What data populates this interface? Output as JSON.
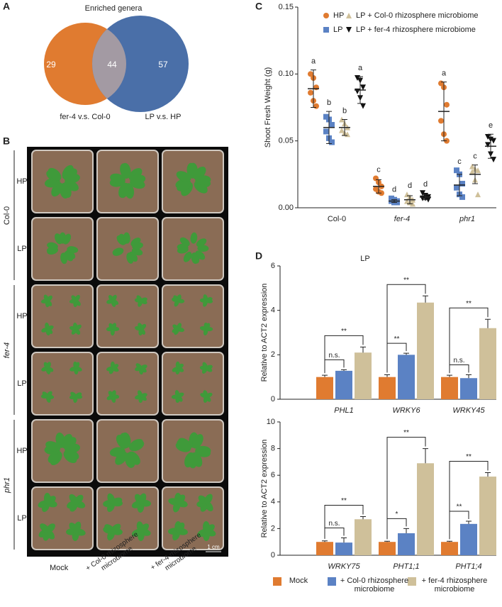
{
  "panel_labels": [
    "A",
    "B",
    "C",
    "D"
  ],
  "venn": {
    "title": "Enriched genera",
    "sets": [
      {
        "label": "fer-4 v.s. Col-0",
        "only": 29,
        "color": "#e07b30"
      },
      {
        "label": "LP v.s. HP",
        "only": 57,
        "color": "#4a6fa8"
      }
    ],
    "both": 44
  },
  "photos": {
    "genotypes": [
      "Col-0",
      "fer-4",
      "phr1"
    ],
    "conditions": [
      "HP",
      "LP"
    ],
    "treatments": [
      "Mock",
      "+ Col-0 rhizosphere microbiome",
      "+ fer-4 rhizosphere microbiome"
    ],
    "scale": "1 cm"
  },
  "chart_data": [
    {
      "type": "dot",
      "ylabel": "Shoot Fresh Weight (g)",
      "categories": [
        "Col-0",
        "fer-4",
        "phr1"
      ],
      "ylim": [
        0,
        0.15
      ],
      "yticks": [
        {
          "value": 0,
          "label": "0.00"
        },
        0.05,
        {
          "value": 0.1,
          "label": "0.10"
        },
        0.15
      ],
      "series": [
        {
          "name": "HP",
          "color": "#e07b30",
          "marker": "circle",
          "values": [
            0.089,
            0.016,
            0.072
          ],
          "errors": [
            0.014,
            0.005,
            0.022
          ],
          "letters": [
            "a",
            "c",
            "a"
          ],
          "points": [
            [
              0.1,
              0.097,
              0.09,
              0.086,
              0.08,
              0.076
            ],
            [
              0.022,
              0.019,
              0.016,
              0.014,
              0.012,
              0.011
            ],
            [
              0.093,
              0.09,
              0.077,
              0.065,
              0.055,
              0.05
            ]
          ]
        },
        {
          "name": "LP",
          "color": "#5b82c4",
          "marker": "square",
          "values": [
            0.06,
            0.005,
            0.017
          ],
          "errors": [
            0.012,
            0.001,
            0.008
          ],
          "letters": [
            "b",
            "d",
            "c"
          ],
          "points": [
            [
              0.068,
              0.066,
              0.062,
              0.057,
              0.052,
              0.049
            ],
            [
              0.007,
              0.006,
              0.005,
              0.005,
              0.004,
              0.004
            ],
            [
              0.028,
              0.025,
              0.018,
              0.015,
              0.01,
              0.008
            ]
          ]
        },
        {
          "name": "LP + Col-0 rhizosphere microbiome",
          "color": "#cfc09a",
          "marker": "triangle",
          "values": [
            0.06,
            0.006,
            0.025
          ],
          "errors": [
            0.006,
            0.003,
            0.007
          ],
          "letters": [
            "b",
            "d",
            "c"
          ],
          "points": [
            [
              0.066,
              0.063,
              0.06,
              0.058,
              0.056,
              0.055
            ],
            [
              0.01,
              0.008,
              0.006,
              0.005,
              0.004,
              0.003
            ],
            [
              0.031,
              0.029,
              0.028,
              0.027,
              0.021,
              0.01
            ]
          ]
        },
        {
          "name": "LP + fer-4 rhizosphere microbiome",
          "color": "#111111",
          "marker": "triangle-down",
          "values": [
            0.088,
            0.008,
            0.046
          ],
          "errors": [
            0.01,
            0.002,
            0.009
          ],
          "letters": [
            "a",
            "d",
            "e"
          ],
          "points": [
            [
              0.097,
              0.095,
              0.09,
              0.087,
              0.082,
              0.076
            ],
            [
              0.011,
              0.009,
              0.008,
              0.007,
              0.007,
              0.006
            ],
            [
              0.053,
              0.051,
              0.05,
              0.047,
              0.04,
              0.036
            ]
          ]
        }
      ]
    },
    {
      "type": "bar",
      "title": "LP",
      "ylabel": "Relative to ACT2 expression",
      "categories": [
        "PHL1",
        "WRKY6",
        "WRKY45"
      ],
      "ylim": [
        0,
        6
      ],
      "yticks": [
        0,
        2,
        4,
        6
      ],
      "series": [
        {
          "name": "Mock",
          "color": "#e07b30",
          "values": [
            1,
            1,
            1
          ],
          "errors": [
            0.08,
            0.1,
            0.08
          ]
        },
        {
          "name": "+ Col-0 rhizosphere microbiome",
          "color": "#5b82c4",
          "values": [
            1.28,
            2.0,
            0.95
          ],
          "errors": [
            0.05,
            0.07,
            0.15
          ]
        },
        {
          "name": "+ fer-4 rhizosphere microbiome",
          "color": "#cfc09a",
          "values": [
            2.1,
            4.35,
            3.2
          ],
          "errors": [
            0.25,
            0.3,
            0.4
          ]
        }
      ],
      "significance": [
        [
          "n.s.",
          "**"
        ],
        [
          "**",
          "**"
        ],
        [
          "n.s.",
          "**"
        ]
      ]
    },
    {
      "type": "bar",
      "ylabel": "Relative to ACT2 expression",
      "categories": [
        "WRKY75",
        "PHT1;1",
        "PHT1;4"
      ],
      "ylim": [
        0,
        10
      ],
      "yticks": [
        0,
        2,
        4,
        6,
        8,
        10
      ],
      "series": [
        {
          "name": "Mock",
          "color": "#e07b30",
          "values": [
            1,
            1,
            1
          ],
          "errors": [
            0.08,
            0.05,
            0.05
          ]
        },
        {
          "name": "+ Col-0 rhizosphere microbiome",
          "color": "#5b82c4",
          "values": [
            0.95,
            1.65,
            2.35
          ],
          "errors": [
            0.35,
            0.35,
            0.2
          ]
        },
        {
          "name": "+ fer-4 rhizosphere microbiome",
          "color": "#cfc09a",
          "values": [
            2.7,
            6.9,
            5.9
          ],
          "errors": [
            0.2,
            1.1,
            0.3
          ]
        }
      ],
      "significance": [
        [
          "n.s.",
          "**"
        ],
        [
          "*",
          "**"
        ],
        [
          "**",
          "**"
        ]
      ]
    }
  ]
}
